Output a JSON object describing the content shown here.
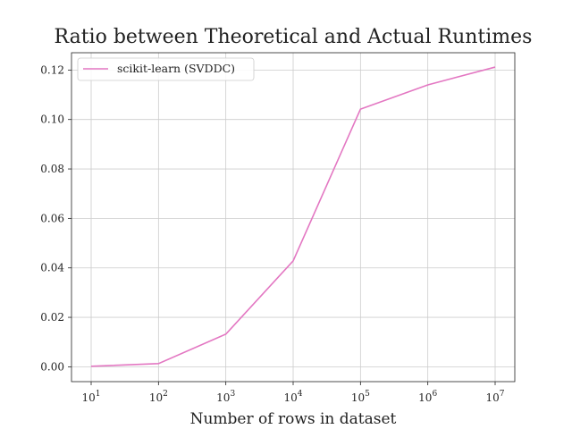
{
  "chart_data": {
    "type": "line",
    "title": "Ratio between Theoretical and Actual Runtimes",
    "xlabel": "Number of rows in dataset",
    "ylabel": "",
    "xscale": "log",
    "xlim": [
      10,
      10000000
    ],
    "ylim": [
      -0.006,
      0.127
    ],
    "grid": true,
    "legend_position": "top-left",
    "x": [
      10,
      100,
      1000,
      10000,
      100000,
      1000000,
      10000000
    ],
    "x_tick_labels": [
      {
        "base": "10",
        "exp": "1"
      },
      {
        "base": "10",
        "exp": "2"
      },
      {
        "base": "10",
        "exp": "3"
      },
      {
        "base": "10",
        "exp": "4"
      },
      {
        "base": "10",
        "exp": "5"
      },
      {
        "base": "10",
        "exp": "6"
      },
      {
        "base": "10",
        "exp": "7"
      }
    ],
    "y_ticks": [
      0.0,
      0.02,
      0.04,
      0.06,
      0.08,
      0.1,
      0.12
    ],
    "y_tick_labels": [
      "0.00",
      "0.02",
      "0.04",
      "0.06",
      "0.08",
      "0.10",
      "0.12"
    ],
    "series": [
      {
        "name": "scikit-learn (SVDDC)",
        "color": "#e377c2",
        "values": [
          0.0002,
          0.0013,
          0.0132,
          0.0428,
          0.1042,
          0.114,
          0.1212
        ]
      }
    ]
  }
}
